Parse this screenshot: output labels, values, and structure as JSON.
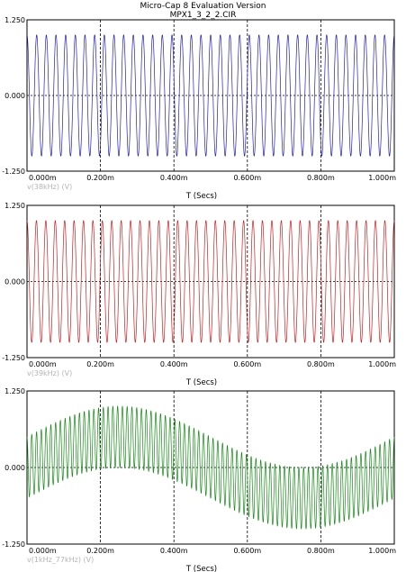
{
  "header": {
    "title": "Micro-Cap 8 Evaluation Version",
    "subtitle": "MPX1_3_2_2.CIR"
  },
  "chart_data": [
    {
      "type": "line",
      "xlabel": "T (Secs)",
      "xlim": [
        0,
        0.001
      ],
      "ylim": [
        -1.25,
        1.25
      ],
      "x_ticks": [
        "0.000m",
        "0.200m",
        "0.400m",
        "0.600m",
        "0.800m",
        "1.000m"
      ],
      "y_ticks": [
        "1.250",
        "0.000",
        "-1.250"
      ],
      "series": [
        {
          "name": "v(38kHz) (V)",
          "color": "#1f1fb4",
          "function": "sine",
          "amplitude": 1.0,
          "frequency_hz": 38000
        }
      ]
    },
    {
      "type": "line",
      "xlabel": "T (Secs)",
      "xlim": [
        0,
        0.001
      ],
      "ylim": [
        -1.25,
        1.25
      ],
      "x_ticks": [
        "0.000m",
        "0.200m",
        "0.400m",
        "0.600m",
        "0.800m",
        "1.000m"
      ],
      "y_ticks": [
        "1.250",
        "0.000",
        "-1.250"
      ],
      "series": [
        {
          "name": "v(39kHz) (V)",
          "color": "#c81e1e",
          "function": "sine",
          "amplitude": 1.0,
          "frequency_hz": 39000
        }
      ]
    },
    {
      "type": "line",
      "xlabel": "T (Secs)",
      "xlim": [
        0,
        0.001
      ],
      "ylim": [
        -1.25,
        1.25
      ],
      "x_ticks": [
        "0.000m",
        "0.200m",
        "0.400m",
        "0.600m",
        "0.800m",
        "1.000m"
      ],
      "y_ticks": [
        "1.250",
        "0.000",
        "-1.250"
      ],
      "series": [
        {
          "name": "v(1kHz_77kHz) (V)",
          "color": "#138a13",
          "function": "dsb",
          "carrier_amplitude": 0.5,
          "carrier_hz": 77000,
          "modulation_amplitude": 0.5,
          "modulation_hz": 1000
        }
      ]
    }
  ]
}
